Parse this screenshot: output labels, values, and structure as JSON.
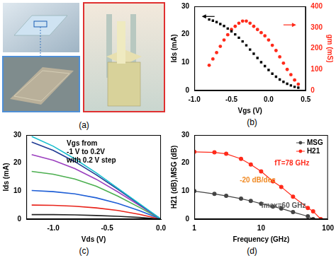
{
  "image_panel": {
    "title": "(a)"
  },
  "chart_data": [
    {
      "type": "scatter",
      "title": "(b)",
      "x_label": "Vgs (V)",
      "y_label": "Ids (mA)",
      "y2_label": "gm (mS)",
      "x": [
        -0.8,
        -0.75,
        -0.7,
        -0.65,
        -0.6,
        -0.55,
        -0.5,
        -0.45,
        -0.4,
        -0.35,
        -0.3,
        -0.25,
        -0.2,
        -0.15,
        -0.1,
        -0.05,
        0,
        0.05,
        0.1,
        0.15,
        0.2,
        0.25,
        0.3,
        0.35,
        0.4
      ],
      "series": [
        {
          "color": "#000000",
          "marker": "square",
          "values": [
            25.3,
            24.9,
            24.4,
            23.7,
            23.0,
            22.1,
            21.1,
            20.0,
            18.8,
            17.5,
            16.1,
            14.6,
            13.1,
            11.6,
            10.1,
            8.7,
            7.3,
            6.0,
            4.9,
            3.9,
            3.1,
            2.4,
            1.8,
            1.3,
            1.0
          ]
        },
        {
          "color": "#ff2a1a",
          "marker": "circle",
          "axis": "y2",
          "values": [
            120,
            150,
            180,
            210,
            240,
            265,
            290,
            305,
            320,
            330,
            330,
            320,
            305,
            290,
            275,
            260,
            240,
            215,
            190,
            160,
            130,
            100,
            75,
            50,
            30
          ]
        }
      ],
      "xlim": [
        -1,
        0.5
      ],
      "xticks": [
        {
          "value": -1,
          "label": "-1.0"
        },
        {
          "value": -0.5,
          "label": "-0.5"
        },
        {
          "value": 0,
          "label": "0.0"
        },
        {
          "value": 0.5,
          "label": "0.5"
        }
      ],
      "ylim": [
        0,
        30
      ],
      "yticks": [
        0,
        10,
        20,
        30
      ],
      "y2lim": [
        0,
        400
      ],
      "y2ticks": [
        0,
        100,
        200,
        300,
        400
      ],
      "grid": false
    },
    {
      "type": "line",
      "title": "(c)",
      "x_label": "Vds (V)",
      "y_label": "Ids (mA)",
      "annotations": [
        {
          "text": [
            "Vgs from",
            "-1 V to 0.2V",
            "with 0.2 V step"
          ],
          "color": "#000000"
        }
      ],
      "x": [
        -1.2,
        -1.0,
        -0.8,
        -0.6,
        -0.4,
        -0.2,
        0
      ],
      "series": [
        {
          "color": "#17becf",
          "marker": "none",
          "values": [
            29.5,
            26.0,
            21.5,
            16.5,
            11.0,
            5.5,
            0
          ]
        },
        {
          "color": "#1f3a93",
          "marker": "none",
          "values": [
            27.5,
            24.5,
            20.5,
            15.8,
            10.6,
            5.3,
            0
          ]
        },
        {
          "color": "#9b3fbf",
          "marker": "none",
          "values": [
            23.0,
            21.0,
            18.0,
            14.2,
            9.7,
            4.9,
            0
          ]
        },
        {
          "color": "#4caf50",
          "marker": "none",
          "values": [
            17.0,
            16.0,
            14.3,
            11.7,
            8.2,
            4.2,
            0
          ]
        },
        {
          "color": "#1f5fd6",
          "marker": "none",
          "values": [
            10.2,
            9.8,
            9.0,
            7.6,
            5.6,
            3.0,
            0
          ]
        },
        {
          "color": "#e8231a",
          "marker": "none",
          "values": [
            5.0,
            4.9,
            4.6,
            4.0,
            3.1,
            1.7,
            0
          ]
        },
        {
          "color": "#222222",
          "marker": "none",
          "values": [
            1.6,
            1.6,
            1.5,
            1.3,
            1.0,
            0.6,
            0
          ]
        }
      ],
      "xlim": [
        -1.25,
        0
      ],
      "xticks": [
        {
          "value": -1,
          "label": "-1.0"
        },
        {
          "value": -0.5,
          "label": "-0.5"
        },
        {
          "value": 0,
          "label": "0.0"
        }
      ],
      "ylim": [
        0,
        30
      ],
      "yticks": [
        0,
        10,
        20,
        30
      ],
      "grid": false
    },
    {
      "type": "line",
      "title": "(d)",
      "x_label": "Frequency (GHz)",
      "y_label": "H21 (dB),MSG (dB)",
      "annotations": [
        {
          "text": [
            "fT=78 GHz"
          ],
          "color": "#ff2a1a"
        },
        {
          "text": [
            "-20 dB/dec"
          ],
          "color": "#f08a24"
        },
        {
          "text": [
            "fmax=60 GHz"
          ],
          "color": "#555555"
        }
      ],
      "x": [
        1,
        2,
        3,
        5,
        7,
        10,
        15,
        20,
        30,
        50,
        60,
        78
      ],
      "series": [
        {
          "name": "MSG",
          "color": "#444444",
          "marker": "circle",
          "values": [
            10,
            9,
            8.3,
            7.3,
            6.5,
            5.5,
            4.5,
            3.8,
            2.5,
            1,
            0,
            null
          ]
        },
        {
          "name": "H21",
          "color": "#ff2a1a",
          "marker": "circle",
          "values": [
            24,
            23.8,
            23.3,
            21.5,
            19.5,
            17,
            13.5,
            11.5,
            8,
            4,
            2.8,
            0
          ]
        }
      ],
      "log": "x",
      "xlim": [
        1,
        100
      ],
      "xticks": [
        1,
        10,
        100
      ],
      "ylim": [
        0,
        30
      ],
      "yticks": [
        0,
        10,
        20,
        30
      ],
      "legend": "upper right",
      "grid": false
    }
  ]
}
